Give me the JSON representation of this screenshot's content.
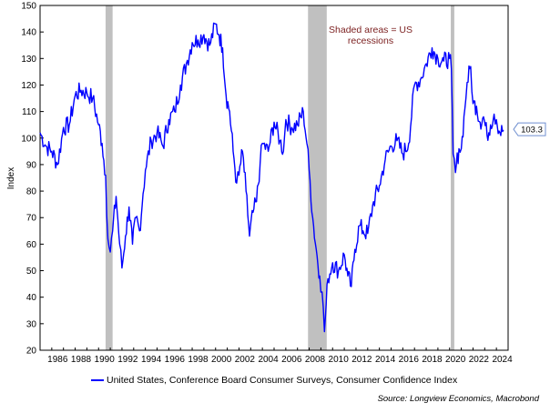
{
  "chart_data": {
    "type": "line",
    "title": "",
    "ylabel": "Index",
    "xlabel": "",
    "ylim": [
      20,
      150
    ],
    "xlim": [
      1985.0,
      2025.0
    ],
    "y_ticks": [
      "20",
      "30",
      "40",
      "50",
      "60",
      "70",
      "80",
      "90",
      "100",
      "110",
      "120",
      "130",
      "140",
      "150"
    ],
    "x_ticks": [
      "1986",
      "1988",
      "1990",
      "1992",
      "1994",
      "1996",
      "1998",
      "2000",
      "2002",
      "2004",
      "2006",
      "2008",
      "2010",
      "2012",
      "2014",
      "2016",
      "2018",
      "2020",
      "2022",
      "2024"
    ],
    "recessions": [
      [
        1990.6,
        1991.2
      ],
      [
        2007.9,
        2009.5
      ],
      [
        2020.1,
        2020.4
      ]
    ],
    "annotation": "Shaded areas = US recessions",
    "last_value_label": "103.3",
    "series": [
      {
        "name": "United States, Conference Board Consumer Surveys, Consumer Confidence Index",
        "color": "#0000ff",
        "x": [
          1985.0,
          1985.5,
          1986.0,
          1986.5,
          1987.0,
          1987.5,
          1988.0,
          1988.5,
          1989.0,
          1989.5,
          1990.0,
          1990.3,
          1990.6,
          1990.8,
          1991.0,
          1991.2,
          1991.5,
          1991.8,
          1992.0,
          1992.3,
          1992.6,
          1992.9,
          1993.2,
          1993.5,
          1993.8,
          1994.0,
          1994.5,
          1995.0,
          1995.5,
          1996.0,
          1996.5,
          1997.0,
          1997.5,
          1998.0,
          1998.5,
          1999.0,
          1999.5,
          2000.0,
          2000.3,
          2000.6,
          2000.9,
          2001.2,
          2001.5,
          2001.8,
          2002.0,
          2002.3,
          2002.6,
          2002.9,
          2003.2,
          2003.5,
          2003.8,
          2004.0,
          2004.5,
          2005.0,
          2005.5,
          2005.8,
          2006.0,
          2006.5,
          2007.0,
          2007.5,
          2007.8,
          2008.0,
          2008.3,
          2008.6,
          2008.9,
          2009.1,
          2009.3,
          2009.6,
          2010.0,
          2010.5,
          2011.0,
          2011.3,
          2011.6,
          2011.9,
          2012.3,
          2012.6,
          2013.0,
          2013.5,
          2014.0,
          2014.5,
          2015.0,
          2015.5,
          2016.0,
          2016.5,
          2017.0,
          2017.5,
          2018.0,
          2018.5,
          2019.0,
          2019.5,
          2020.0,
          2020.15,
          2020.3,
          2020.5,
          2020.8,
          2021.0,
          2021.3,
          2021.5,
          2021.8,
          2022.0,
          2022.3,
          2022.6,
          2022.9,
          2023.2,
          2023.5,
          2023.8,
          2024.0,
          2024.3,
          2024.6
        ],
        "values": [
          102,
          97,
          95,
          90,
          104,
          105,
          116,
          118,
          117,
          115,
          105,
          98,
          86,
          62,
          57,
          65,
          78,
          60,
          51,
          63,
          74,
          60,
          70,
          65,
          79,
          88,
          99,
          102,
          97,
          107,
          110,
          120,
          128,
          136,
          137,
          139,
          135,
          143,
          139,
          134,
          116,
          110,
          95,
          83,
          86,
          95,
          80,
          63,
          72,
          76,
          90,
          98,
          95,
          106,
          99,
          95,
          107,
          104,
          105,
          110,
          98,
          88,
          70,
          58,
          48,
          42,
          27,
          47,
          53,
          50,
          56,
          48,
          44,
          58,
          67,
          65,
          64,
          76,
          82,
          92,
          97,
          99,
          94,
          98,
          120,
          122,
          128,
          134,
          130,
          129,
          130,
          126,
          94,
          87,
          96,
          96,
          111,
          121,
          127,
          113,
          112,
          106,
          108,
          101,
          105,
          109,
          107,
          102,
          103
        ]
      }
    ]
  },
  "legend": {
    "label": "United States, Conference Board Consumer Surveys, Consumer Confidence Index"
  },
  "source": "Source: Longview Economics, Macrobond"
}
